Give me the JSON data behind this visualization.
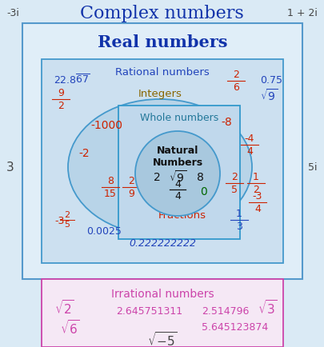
{
  "title": "Complex numbers",
  "bg_color": "#daeaf5",
  "outer_rect_color": "#5599cc",
  "outer_rect_fill": "#e0eef8",
  "real_numbers_label": "Real numbers",
  "rational_label": "Rational numbers",
  "rational_rect_color": "#4499cc",
  "rational_rect_fill": "#cce0f0",
  "integers_label": "Integers",
  "integers_ellipse_color": "#4499cc",
  "integers_ellipse_fill": "#b8d4e8",
  "whole_label": "Whole numbers",
  "whole_rect_color": "#3399cc",
  "whole_rect_fill": "#c0d8ec",
  "natural_label": "Natural\nNumbers",
  "natural_circle_color": "#4499cc",
  "natural_circle_fill": "#a8c8de",
  "fractions_label": "Fractions",
  "irrational_label": "Irrational numbers",
  "irrational_rect_color": "#cc44aa",
  "irrational_rect_fill": "#f5e8f5",
  "corner_tl": "-3i",
  "corner_tr": "1 + 2i",
  "corner_ml": "3",
  "corner_mr": "5i",
  "sqrt_minus5": "√-5",
  "blue_color": "#2244bb",
  "dark_blue": "#1133aa",
  "red_color": "#cc2200",
  "green_color": "#006600",
  "pink_color": "#cc44aa",
  "olive_color": "#886600",
  "teal_color": "#227799",
  "black_color": "#111111",
  "gray_color": "#444444"
}
